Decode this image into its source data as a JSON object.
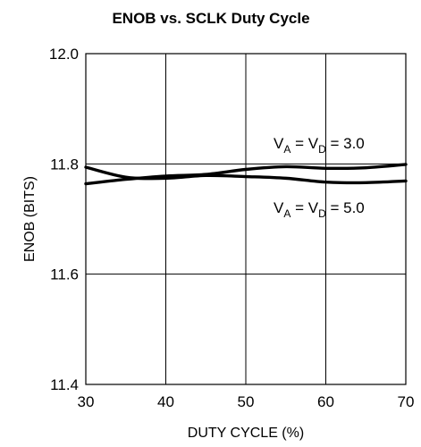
{
  "chart_data": {
    "type": "line",
    "title": "ENOB vs. SCLK Duty Cycle",
    "xlabel": "DUTY CYCLE (%)",
    "ylabel": "ENOB (BITS)",
    "xlim": [
      30,
      70
    ],
    "ylim": [
      11.4,
      12.0
    ],
    "xticks": [
      30,
      40,
      50,
      60,
      70
    ],
    "yticks": [
      "11.4",
      "11.6",
      "11.8",
      "12.0"
    ],
    "grid": true,
    "series": [
      {
        "annotation": {
          "v": "V",
          "a": "A",
          "eq": " = ",
          "d": "D",
          "value": " = 3.0"
        },
        "x": [
          30,
          35,
          40,
          45,
          50,
          55,
          60,
          65,
          70
        ],
        "y": [
          11.764,
          11.772,
          11.778,
          11.781,
          11.79,
          11.795,
          11.792,
          11.793,
          11.799
        ]
      },
      {
        "annotation": {
          "v": "V",
          "a": "A",
          "eq": " = ",
          "d": "D",
          "value": " = 5.0"
        },
        "x": [
          30,
          35,
          40,
          45,
          50,
          55,
          60,
          65,
          70
        ],
        "y": [
          11.794,
          11.776,
          11.774,
          11.779,
          11.777,
          11.774,
          11.767,
          11.766,
          11.769
        ]
      }
    ]
  }
}
